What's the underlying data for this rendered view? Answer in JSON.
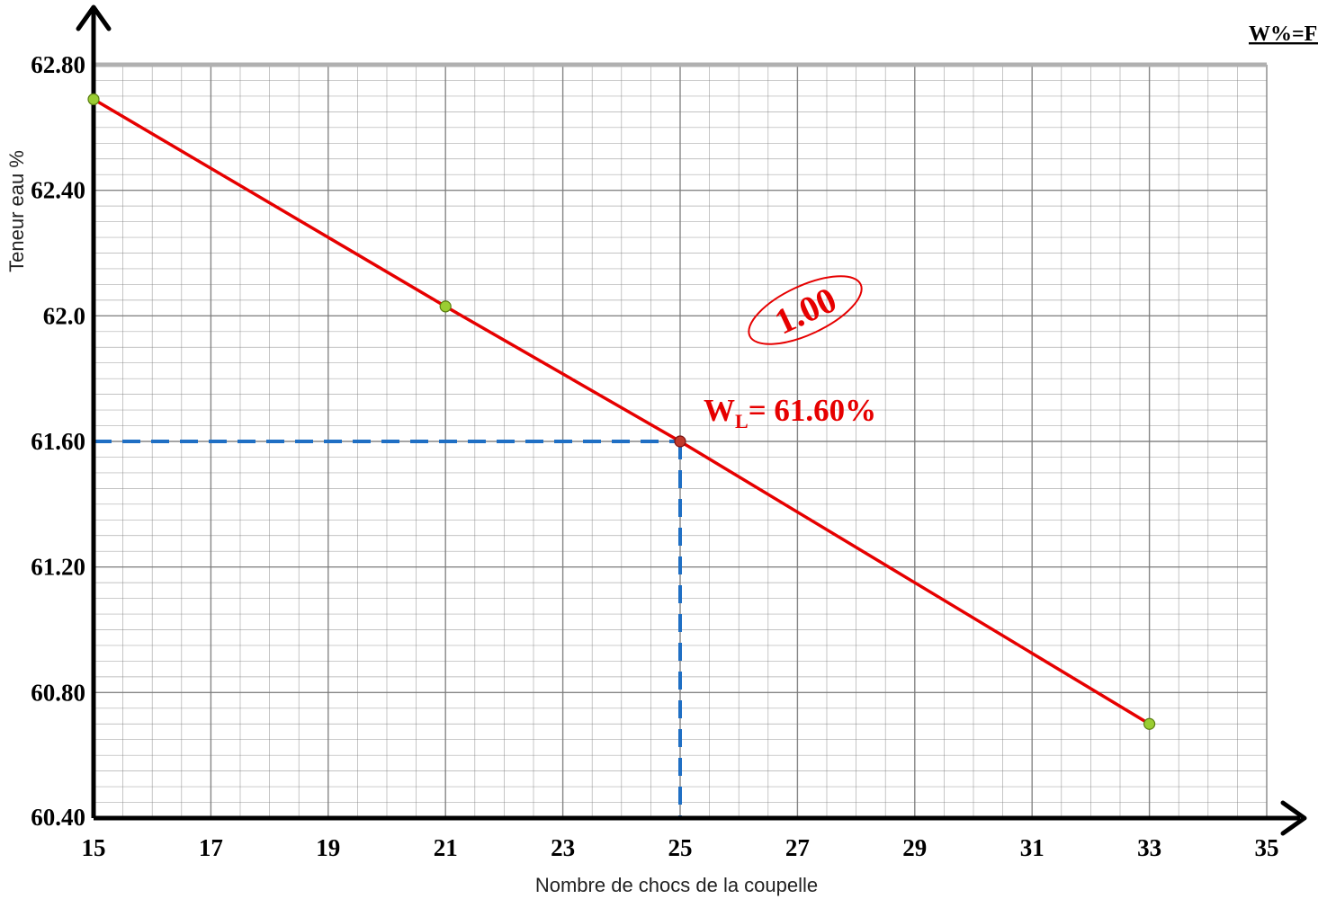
{
  "chart_data": {
    "type": "line",
    "title": "منحنى حد السيولة W%=F (N)",
    "xlabel": "Nombre de chocs de la coupelle",
    "ylabel": "Teneur eau %",
    "xlim": [
      15,
      35
    ],
    "ylim": [
      60.4,
      62.8
    ],
    "x_ticks": [
      "15",
      "17",
      "19",
      "21",
      "23",
      "25",
      "27",
      "29",
      "31",
      "33",
      "35"
    ],
    "y_ticks": [
      "60.40",
      "60.80",
      "61.20",
      "61.60",
      "62.0",
      "62.40",
      "62.80"
    ],
    "grid": true,
    "series": [
      {
        "color": "#e60000",
        "points": [
          {
            "x": 15,
            "y": 62.69
          },
          {
            "x": 21,
            "y": 62.03
          },
          {
            "x": 25,
            "y": 61.6
          },
          {
            "x": 33,
            "y": 60.7
          }
        ]
      }
    ],
    "highlight": {
      "x": 25,
      "y": 61.6,
      "color": "#1f6fc4"
    },
    "annotations": {
      "wl_prefix": "W",
      "wl_subscript": "L",
      "wl_value": "= 61.60%",
      "stamp": "1.00"
    },
    "colors": {
      "line": "#e60000",
      "point": "#9acd32",
      "highlight_point": "#c0392b",
      "dashed": "#1f6fc4",
      "grid": "#7a7a7a",
      "axis": "#000000"
    }
  }
}
